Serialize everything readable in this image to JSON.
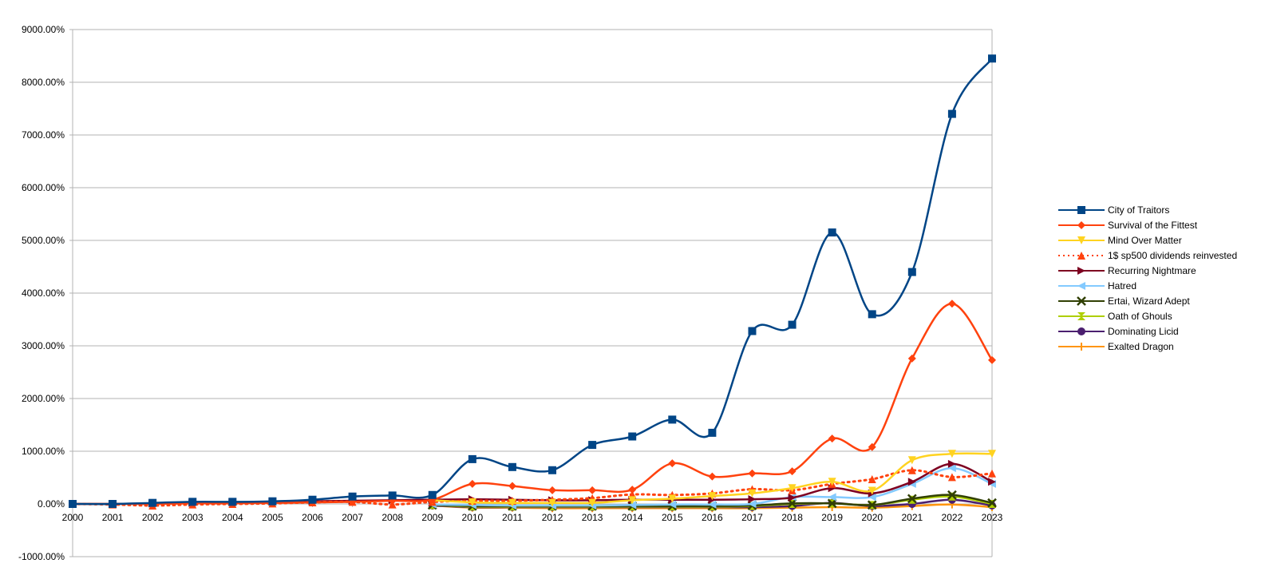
{
  "chart_data": {
    "type": "line",
    "title": "",
    "xlabel": "",
    "ylabel": "",
    "x": [
      "2000",
      "2001",
      "2002",
      "2003",
      "2004",
      "2005",
      "2006",
      "2007",
      "2008",
      "2009",
      "2010",
      "2011",
      "2012",
      "2013",
      "2014",
      "2015",
      "2016",
      "2017",
      "2018",
      "2019",
      "2020",
      "2021",
      "2022",
      "2023"
    ],
    "ylim": [
      -1000,
      9000
    ],
    "yticks": [
      "-1000.00%",
      "0.00%",
      "1000.00%",
      "2000.00%",
      "3000.00%",
      "4000.00%",
      "5000.00%",
      "6000.00%",
      "7000.00%",
      "8000.00%",
      "9000.00%"
    ],
    "ytick_values": [
      -1000,
      0,
      1000,
      2000,
      3000,
      4000,
      5000,
      6000,
      7000,
      8000,
      9000
    ],
    "grid": true,
    "legend_position": "right",
    "series": [
      {
        "name": "City of Traitors",
        "color": "#004586",
        "marker": "square",
        "values": [
          0,
          0,
          20,
          40,
          40,
          50,
          80,
          140,
          160,
          170,
          850,
          700,
          640,
          1120,
          1280,
          1600,
          1350,
          3280,
          3400,
          5150,
          3600,
          4400,
          7400,
          8450
        ]
      },
      {
        "name": "Survival of the Fittest",
        "color": "#ff420e",
        "marker": "diamond",
        "values": [
          0,
          0,
          0,
          10,
          10,
          20,
          30,
          40,
          60,
          80,
          380,
          340,
          260,
          260,
          270,
          770,
          520,
          580,
          620,
          1240,
          1080,
          2760,
          3800,
          2730
        ]
      },
      {
        "name": "Mind Over Matter",
        "color": "#ffd320",
        "marker": "triangle-down",
        "values": [
          null,
          null,
          null,
          null,
          null,
          null,
          null,
          null,
          null,
          70,
          30,
          20,
          20,
          20,
          70,
          100,
          150,
          200,
          300,
          420,
          250,
          830,
          950,
          950
        ]
      },
      {
        "name": "1$ sp500 dividends reinvested",
        "color": "#ff420e",
        "marker": "triangle-up",
        "dashed": true,
        "values": [
          0,
          -10,
          -30,
          -10,
          0,
          10,
          30,
          40,
          -10,
          40,
          60,
          60,
          80,
          110,
          180,
          170,
          200,
          280,
          260,
          380,
          470,
          640,
          510,
          580
        ]
      },
      {
        "name": "Recurring Nightmare",
        "color": "#7e0021",
        "marker": "triangle-right",
        "values": [
          0,
          0,
          10,
          20,
          30,
          40,
          50,
          60,
          70,
          80,
          90,
          80,
          70,
          70,
          80,
          80,
          80,
          90,
          120,
          300,
          200,
          420,
          760,
          420
        ]
      },
      {
        "name": "Hatred",
        "color": "#83caff",
        "marker": "triangle-left",
        "values": [
          null,
          null,
          null,
          null,
          null,
          null,
          null,
          null,
          null,
          -10,
          -20,
          -30,
          -30,
          -30,
          -20,
          -10,
          -10,
          0,
          130,
          130,
          130,
          380,
          680,
          380
        ]
      },
      {
        "name": "Ertai, Wizard Adept",
        "color": "#314004",
        "marker": "x",
        "values": [
          null,
          null,
          null,
          null,
          null,
          null,
          null,
          null,
          null,
          -20,
          -40,
          -40,
          -40,
          -40,
          -40,
          -40,
          -40,
          -30,
          10,
          10,
          -20,
          100,
          170,
          20
        ]
      },
      {
        "name": "Oath of Ghouls",
        "color": "#aecf00",
        "marker": "hourglass",
        "values": [
          null,
          null,
          null,
          null,
          null,
          null,
          null,
          null,
          null,
          -20,
          -50,
          -50,
          -50,
          -50,
          -50,
          -50,
          -50,
          -40,
          0,
          10,
          -20,
          80,
          140,
          0
        ]
      },
      {
        "name": "Dominating Licid",
        "color": "#4b1f6f",
        "marker": "circle",
        "values": [
          null,
          null,
          null,
          null,
          null,
          null,
          null,
          null,
          null,
          -30,
          -60,
          -60,
          -60,
          -60,
          -60,
          -60,
          -60,
          -60,
          -40,
          20,
          -40,
          0,
          80,
          -30
        ]
      },
      {
        "name": "Exalted Dragon",
        "color": "#ff950e",
        "marker": "plus",
        "values": [
          null,
          null,
          null,
          null,
          null,
          null,
          null,
          null,
          null,
          -30,
          -70,
          -70,
          -80,
          -80,
          -80,
          -80,
          -80,
          -80,
          -70,
          -60,
          -70,
          -40,
          -10,
          -60
        ]
      }
    ]
  }
}
